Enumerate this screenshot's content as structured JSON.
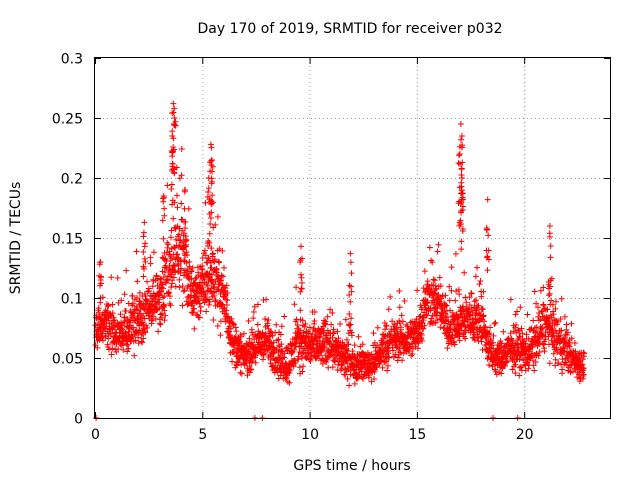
{
  "chart_data": {
    "type": "scatter",
    "title": "Day 170 of 2019, SRMTID for receiver p032",
    "xlabel": "GPS time / hours",
    "ylabel": "SRMTID / TECUs",
    "xlim": [
      0,
      24
    ],
    "ylim": [
      0,
      0.3
    ],
    "xticks": [
      0,
      5,
      10,
      15,
      20
    ],
    "yticks": [
      0,
      0.05,
      0.1,
      0.15,
      0.2,
      0.25,
      0.3
    ],
    "xtick_labels": [
      "0",
      "5",
      "10",
      "15",
      "20"
    ],
    "ytick_labels": [
      "0",
      "0.05",
      "0.1",
      "0.15",
      "0.2",
      "0.25",
      "0.3"
    ],
    "grid": true,
    "marker": "+",
    "color": "#ff0000",
    "series": [
      {
        "name": "SRMTID",
        "trend": {
          "x": [
            0,
            0.5,
            1,
            1.5,
            2,
            2.5,
            3,
            3.5,
            4,
            4.5,
            5,
            5.5,
            6,
            6.5,
            7,
            7.5,
            8,
            8.5,
            9,
            9.5,
            10,
            10.5,
            11,
            11.5,
            12,
            12.5,
            13,
            13.5,
            14,
            14.5,
            15,
            15.5,
            16,
            16.5,
            17,
            17.5,
            18,
            18.5,
            19,
            19.5,
            20,
            20.5,
            21,
            21.5,
            22,
            22.5,
            22.8
          ],
          "y": [
            0.075,
            0.08,
            0.07,
            0.075,
            0.08,
            0.09,
            0.1,
            0.125,
            0.14,
            0.1,
            0.11,
            0.12,
            0.1,
            0.06,
            0.05,
            0.06,
            0.065,
            0.05,
            0.045,
            0.065,
            0.06,
            0.06,
            0.065,
            0.05,
            0.045,
            0.045,
            0.045,
            0.06,
            0.065,
            0.065,
            0.07,
            0.1,
            0.095,
            0.075,
            0.08,
            0.085,
            0.08,
            0.05,
            0.05,
            0.06,
            0.055,
            0.06,
            0.08,
            0.065,
            0.055,
            0.045,
            0.045
          ],
          "spread": [
            0.025,
            0.03,
            0.025,
            0.025,
            0.03,
            0.03,
            0.035,
            0.05,
            0.05,
            0.04,
            0.04,
            0.045,
            0.04,
            0.025,
            0.02,
            0.025,
            0.025,
            0.025,
            0.025,
            0.03,
            0.03,
            0.03,
            0.03,
            0.025,
            0.02,
            0.02,
            0.02,
            0.025,
            0.025,
            0.025,
            0.025,
            0.03,
            0.03,
            0.025,
            0.03,
            0.03,
            0.03,
            0.02,
            0.02,
            0.025,
            0.025,
            0.03,
            0.03,
            0.03,
            0.025,
            0.02,
            0.02
          ]
        },
        "peaks": [
          {
            "x": 3.65,
            "y": 0.262
          },
          {
            "x": 3.7,
            "y": 0.25
          },
          {
            "x": 3.6,
            "y": 0.235
          },
          {
            "x": 5.4,
            "y": 0.228
          },
          {
            "x": 5.45,
            "y": 0.215
          },
          {
            "x": 5.3,
            "y": 0.2
          },
          {
            "x": 4.2,
            "y": 0.19
          },
          {
            "x": 3.2,
            "y": 0.185
          },
          {
            "x": 17.05,
            "y": 0.245
          },
          {
            "x": 17.1,
            "y": 0.235
          },
          {
            "x": 17.0,
            "y": 0.22
          },
          {
            "x": 17.1,
            "y": 0.2
          },
          {
            "x": 18.3,
            "y": 0.182
          },
          {
            "x": 21.2,
            "y": 0.16
          },
          {
            "x": 9.6,
            "y": 0.143
          },
          {
            "x": 11.9,
            "y": 0.137
          },
          {
            "x": 2.3,
            "y": 0.163
          },
          {
            "x": 0.25,
            "y": 0.13
          }
        ],
        "zero_points": [
          0.05,
          7.45,
          7.8,
          18.55,
          19.7
        ]
      }
    ]
  }
}
